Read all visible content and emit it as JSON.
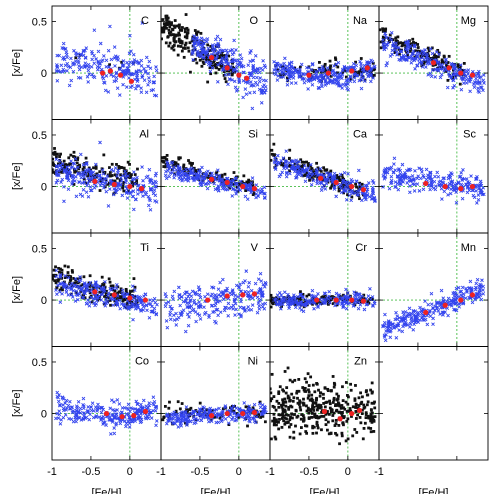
{
  "chart_data": {
    "type": "scatter",
    "title": "",
    "xlabel": "[Fe/H]",
    "ylabel": "[x/Fe]",
    "xlim": [
      -1.0,
      0.4
    ],
    "ylim": [
      -0.45,
      0.65
    ],
    "x_ticks": [
      -1,
      -0.5,
      0,
      0.5
    ],
    "x_tick_labels": [
      "-1",
      "-0.5",
      "0",
      "-1",
      "-0.5",
      "0",
      "-1",
      "-0.5",
      "0",
      "-1"
    ],
    "y_ticks": [
      0,
      0.5
    ],
    "y_tick_labels": [
      "0",
      "0.5"
    ],
    "reference_lines": {
      "x": 0,
      "y": 0,
      "style": "dotted",
      "color": "#44bb44"
    },
    "grid": false,
    "legend": "none",
    "colors": {
      "thick_disk": "#111111",
      "thin_disk": "#3344ee",
      "highlight": "#ee2222",
      "reference": "#44bb44"
    },
    "series_meta": [
      {
        "marker": "filled-square",
        "color": "#111111"
      },
      {
        "marker": "cross",
        "color": "#3344ee"
      },
      {
        "marker": "circle",
        "color": "#ee2222"
      }
    ],
    "panels": [
      {
        "element": "C",
        "black": {
          "count": 6,
          "x": [
            -0.85,
            0.05
          ],
          "y0": 0.12,
          "slope": -0.05,
          "spread": 0.05
        },
        "blue": {
          "count": 220,
          "x": [
            -0.95,
            0.35
          ],
          "y0": 0.02,
          "slope": -0.1,
          "spread": 0.09,
          "outliers": 0.25
        },
        "red": [
          [
            -0.25,
            0.02
          ],
          [
            -0.12,
            -0.02
          ],
          [
            0.02,
            -0.08
          ],
          [
            -0.35,
            0.0
          ]
        ]
      },
      {
        "element": "O",
        "black": {
          "count": 230,
          "x": [
            -1.0,
            -0.05
          ],
          "y0": 0.0,
          "slope": -0.45,
          "spread": 0.08
        },
        "blue": {
          "count": 230,
          "x": [
            -0.6,
            0.35
          ],
          "y0": 0.02,
          "slope": -0.45,
          "spread": 0.1
        },
        "red": [
          [
            -0.35,
            0.15
          ],
          [
            -0.15,
            0.05
          ],
          [
            0.0,
            -0.02
          ],
          [
            0.1,
            -0.05
          ]
        ]
      },
      {
        "element": "Na",
        "black": {
          "count": 90,
          "x": [
            -0.95,
            0.35
          ],
          "y0": 0.02,
          "slope": 0.0,
          "spread": 0.05,
          "outliers": 0.15
        },
        "blue": {
          "count": 260,
          "x": [
            -0.95,
            0.35
          ],
          "y0": 0.0,
          "slope": 0.0,
          "spread": 0.06,
          "curve": 0.25
        },
        "red": [
          [
            -0.5,
            -0.02
          ],
          [
            -0.25,
            0.0
          ],
          [
            0.05,
            0.02
          ],
          [
            0.25,
            0.05
          ]
        ]
      },
      {
        "element": "Mg",
        "black": {
          "count": 160,
          "x": [
            -1.0,
            0.1
          ],
          "y0": 0.02,
          "slope": -0.35,
          "spread": 0.05
        },
        "blue": {
          "count": 230,
          "x": [
            -0.95,
            0.35
          ],
          "y0": 0.0,
          "slope": -0.3,
          "spread": 0.06
        },
        "red": [
          [
            -0.3,
            0.1
          ],
          [
            -0.1,
            0.05
          ],
          [
            0.05,
            0.0
          ],
          [
            0.2,
            -0.02
          ]
        ]
      },
      {
        "element": "Al",
        "black": {
          "count": 170,
          "x": [
            -1.0,
            0.1
          ],
          "y0": 0.05,
          "slope": -0.2,
          "spread": 0.07
        },
        "blue": {
          "count": 240,
          "x": [
            -0.95,
            0.35
          ],
          "y0": 0.0,
          "slope": -0.15,
          "spread": 0.08,
          "outliers": 0.2
        },
        "red": [
          [
            -0.45,
            0.05
          ],
          [
            -0.2,
            0.02
          ],
          [
            0.0,
            0.0
          ],
          [
            0.15,
            -0.02
          ]
        ]
      },
      {
        "element": "Si",
        "black": {
          "count": 140,
          "x": [
            -1.0,
            0.2
          ],
          "y0": 0.03,
          "slope": -0.22,
          "spread": 0.04
        },
        "blue": {
          "count": 220,
          "x": [
            -0.95,
            0.35
          ],
          "y0": 0.0,
          "slope": -0.18,
          "spread": 0.04
        },
        "red": [
          [
            -0.35,
            0.07
          ],
          [
            -0.15,
            0.04
          ],
          [
            0.05,
            0.0
          ],
          [
            0.2,
            -0.02
          ]
        ]
      },
      {
        "element": "Ca",
        "black": {
          "count": 170,
          "x": [
            -1.0,
            0.2
          ],
          "y0": 0.0,
          "slope": -0.3,
          "spread": 0.05
        },
        "blue": {
          "count": 220,
          "x": [
            -0.95,
            0.35
          ],
          "y0": 0.0,
          "slope": -0.25,
          "spread": 0.05
        },
        "red": [
          [
            -0.35,
            0.08
          ],
          [
            -0.15,
            0.04
          ],
          [
            0.05,
            0.0
          ],
          [
            0.2,
            -0.03
          ]
        ]
      },
      {
        "element": "Sc",
        "black": {
          "count": 0,
          "x": [
            -0.5,
            0.3
          ],
          "y0": 0.0,
          "slope": 0.0,
          "spread": 0.05
        },
        "blue": {
          "count": 230,
          "x": [
            -0.95,
            0.35
          ],
          "y0": 0.02,
          "slope": -0.1,
          "spread": 0.06
        },
        "red": [
          [
            -0.4,
            0.03
          ],
          [
            -0.15,
            0.0
          ],
          [
            0.05,
            -0.02
          ],
          [
            0.2,
            0.0
          ]
        ]
      },
      {
        "element": "Ti",
        "black": {
          "count": 190,
          "x": [
            -1.0,
            0.1
          ],
          "y0": 0.02,
          "slope": -0.2,
          "spread": 0.06
        },
        "blue": {
          "count": 220,
          "x": [
            -0.95,
            0.35
          ],
          "y0": 0.0,
          "slope": -0.15,
          "spread": 0.06
        },
        "red": [
          [
            -0.45,
            0.08
          ],
          [
            -0.2,
            0.05
          ],
          [
            0.0,
            0.02
          ],
          [
            0.2,
            0.0
          ]
        ]
      },
      {
        "element": "V",
        "black": {
          "count": 0,
          "x": [
            -0.5,
            0.3
          ],
          "y0": 0.0,
          "slope": 0.0,
          "spread": 0.05
        },
        "blue": {
          "count": 230,
          "x": [
            -0.95,
            0.35
          ],
          "y0": 0.02,
          "slope": 0.1,
          "spread": 0.09
        },
        "red": [
          [
            -0.4,
            0.0
          ],
          [
            -0.15,
            0.04
          ],
          [
            0.05,
            0.05
          ],
          [
            0.2,
            0.06
          ]
        ]
      },
      {
        "element": "Cr",
        "black": {
          "count": 140,
          "x": [
            -1.0,
            0.35
          ],
          "y0": 0.0,
          "slope": 0.0,
          "spread": 0.03
        },
        "blue": {
          "count": 200,
          "x": [
            -0.95,
            0.35
          ],
          "y0": 0.0,
          "slope": 0.0,
          "spread": 0.04
        },
        "red": [
          [
            -0.4,
            0.0
          ],
          [
            -0.15,
            0.0
          ],
          [
            0.05,
            0.0
          ],
          [
            0.2,
            -0.01
          ]
        ]
      },
      {
        "element": "Mn",
        "black": {
          "count": 0,
          "x": [
            -0.5,
            0.3
          ],
          "y0": 0.0,
          "slope": 0.0,
          "spread": 0.05
        },
        "blue": {
          "count": 260,
          "x": [
            -0.95,
            0.35
          ],
          "y0": 0.0,
          "slope": 0.3,
          "spread": 0.05
        },
        "red": [
          [
            -0.4,
            -0.12
          ],
          [
            -0.15,
            -0.05
          ],
          [
            0.05,
            0.0
          ],
          [
            0.2,
            0.05
          ]
        ]
      },
      {
        "element": "Co",
        "black": {
          "count": 0,
          "x": [
            -0.5,
            0.3
          ],
          "y0": 0.0,
          "slope": 0.0,
          "spread": 0.05
        },
        "blue": {
          "count": 240,
          "x": [
            -0.95,
            0.35
          ],
          "y0": 0.0,
          "slope": -0.05,
          "spread": 0.06,
          "curve": 0.25
        },
        "red": [
          [
            -0.3,
            0.0
          ],
          [
            -0.1,
            -0.03
          ],
          [
            0.05,
            -0.02
          ],
          [
            0.2,
            0.02
          ]
        ]
      },
      {
        "element": "Ni",
        "black": {
          "count": 90,
          "x": [
            -1.0,
            0.35
          ],
          "y0": 0.0,
          "slope": 0.0,
          "spread": 0.05
        },
        "blue": {
          "count": 230,
          "x": [
            -0.95,
            0.35
          ],
          "y0": 0.0,
          "slope": 0.05,
          "spread": 0.04
        },
        "red": [
          [
            -0.35,
            -0.02
          ],
          [
            -0.15,
            0.0
          ],
          [
            0.05,
            0.0
          ],
          [
            0.2,
            0.01
          ]
        ]
      },
      {
        "element": "Zn",
        "black": {
          "count": 380,
          "x": [
            -1.0,
            0.35
          ],
          "y0": 0.03,
          "slope": -0.05,
          "spread": 0.14
        },
        "blue": {
          "count": 0,
          "x": [
            -0.5,
            0.3
          ],
          "y0": 0.0,
          "slope": 0.0,
          "spread": 0.05
        },
        "red": [
          [
            -0.3,
            0.02
          ],
          [
            -0.1,
            -0.05
          ],
          [
            0.05,
            0.0
          ],
          [
            0.15,
            0.03
          ]
        ]
      }
    ]
  }
}
